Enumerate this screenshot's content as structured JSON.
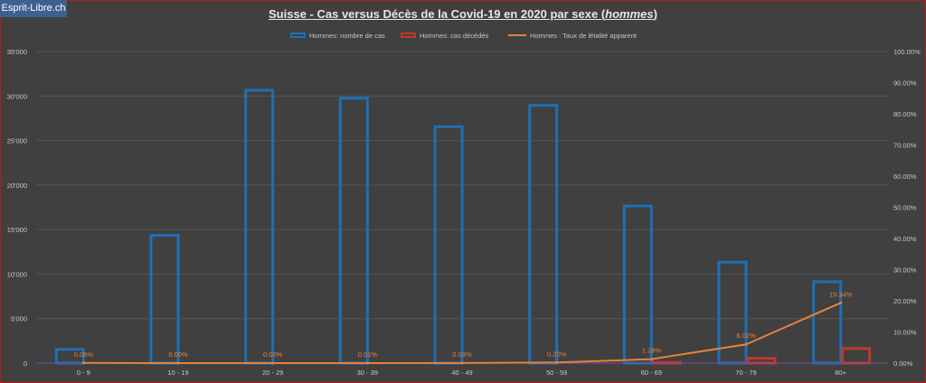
{
  "watermark": "Esprit-Libre.ch",
  "title": {
    "main": "Suisse - Cas versus Décès de la Covid-19 en 2020 par sexe (",
    "emph": "hommes",
    "end": ")"
  },
  "colors": {
    "cases": "#1f6fb5",
    "deaths": "#c0392b",
    "rate": "#e8823a",
    "labels": "#e8823a"
  },
  "chart_data": {
    "type": "bar",
    "title": "Suisse - Cas versus Décès de la Covid-19 en 2020 par sexe (hommes)",
    "categories": [
      "0 - 9",
      "10 - 19",
      "20 - 29",
      "30 - 39",
      "40 - 49",
      "50 - 59",
      "60 - 69",
      "70 - 79",
      "80+"
    ],
    "series": [
      {
        "name": "Hommes: nombre de cas",
        "kind": "bar",
        "axis": "left",
        "values": [
          1700,
          14500,
          30800,
          29900,
          26700,
          29100,
          17800,
          11500,
          9300
        ]
      },
      {
        "name": "Hommes: cas décédés",
        "kind": "bar",
        "axis": "left",
        "values": [
          1,
          0,
          0,
          2,
          8,
          58,
          228,
          692,
          1800
        ]
      },
      {
        "name": "Hommes : Taux de létalité apparent",
        "kind": "line",
        "axis": "right",
        "values": [
          0.06,
          0.0,
          0.0,
          0.01,
          0.03,
          0.2,
          1.28,
          6.02,
          19.34
        ]
      }
    ],
    "rate_labels": [
      "0.06%",
      "0.00%",
      "0.00%",
      "0.01%",
      "0.03%",
      "0.20%",
      "1.28%",
      "6.02%",
      "19.34%"
    ],
    "y_left": {
      "min": 0,
      "max": 35000,
      "ticks": [
        "0",
        "5'000",
        "10'000",
        "15'000",
        "20'000",
        "25'000",
        "30'000",
        "35'000"
      ]
    },
    "y_right": {
      "min": 0,
      "max": 100,
      "ticks": [
        "0.00%",
        "10.00%",
        "20.00%",
        "30.00%",
        "40.00%",
        "50.00%",
        "60.00%",
        "70.00%",
        "80.00%",
        "90.00%",
        "100.00%"
      ]
    },
    "grid": true,
    "legend": "top-center"
  }
}
